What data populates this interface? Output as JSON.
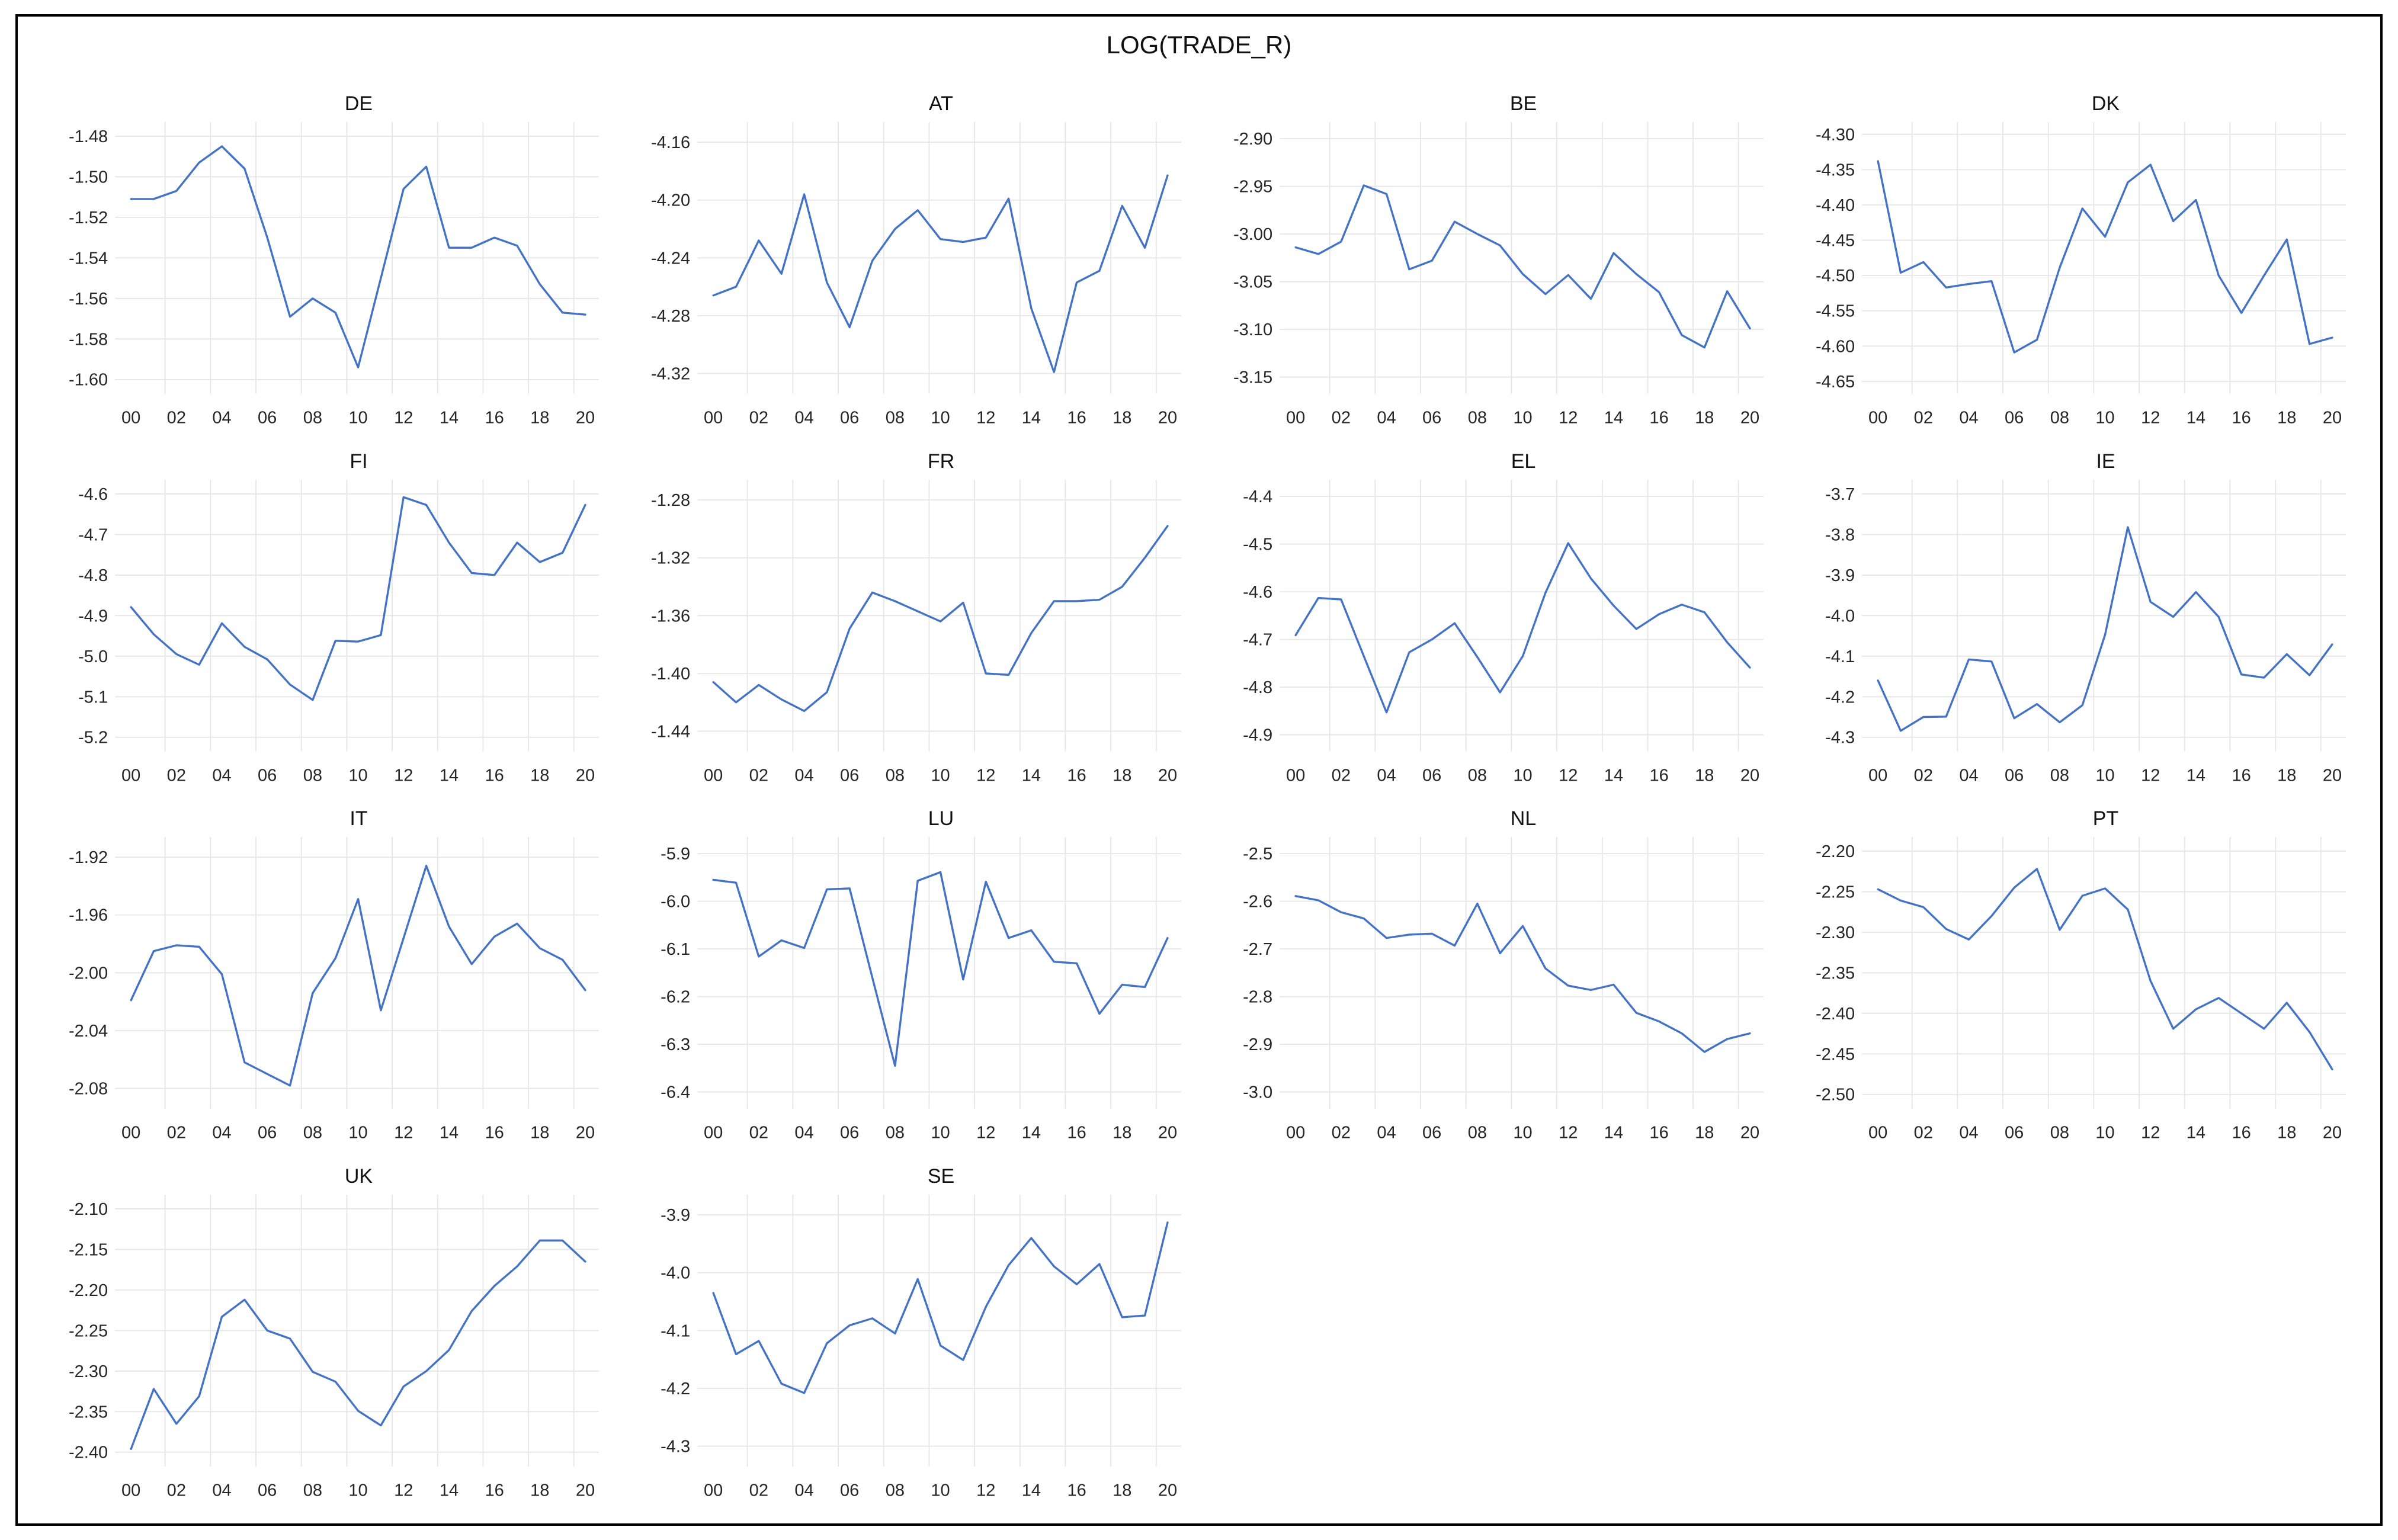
{
  "figure": {
    "title": "LOG(TRADE_R)",
    "line_color": "#4472C4",
    "grid_color": "#e6e6e6",
    "border_color": "#000000",
    "label_color": "#262626",
    "x_tick_labels": [
      "00",
      "02",
      "04",
      "06",
      "08",
      "10",
      "12",
      "14",
      "16",
      "18",
      "20"
    ]
  },
  "chart_data": [
    {
      "type": "line",
      "name": "DE",
      "x_start_year": 2000,
      "tick_decimals": 2,
      "yticks": [
        -1.48,
        -1.5,
        -1.52,
        -1.54,
        -1.56,
        -1.58,
        -1.6
      ],
      "values": [
        -1.511,
        -1.511,
        -1.507,
        -1.493,
        -1.485,
        -1.496,
        -1.53,
        -1.569,
        -1.56,
        -1.567,
        -1.594,
        -1.55,
        -1.506,
        -1.495,
        -1.535,
        -1.535,
        -1.53,
        -1.534,
        -1.553,
        -1.567,
        -1.568
      ]
    },
    {
      "type": "line",
      "name": "AT",
      "x_start_year": 2000,
      "tick_decimals": 2,
      "yticks": [
        -4.16,
        -4.2,
        -4.24,
        -4.28,
        -4.32
      ],
      "values": [
        -4.266,
        -4.26,
        -4.228,
        -4.251,
        -4.196,
        -4.257,
        -4.288,
        -4.242,
        -4.22,
        -4.207,
        -4.227,
        -4.229,
        -4.226,
        -4.199,
        -4.275,
        -4.319,
        -4.257,
        -4.249,
        -4.204,
        -4.233,
        -4.183
      ]
    },
    {
      "type": "line",
      "name": "BE",
      "x_start_year": 2000,
      "tick_decimals": 2,
      "yticks": [
        -2.9,
        -2.95,
        -3.0,
        -3.05,
        -3.1,
        -3.15
      ],
      "values": [
        -3.014,
        -3.021,
        -3.008,
        -2.949,
        -2.958,
        -3.037,
        -3.028,
        -2.987,
        -3.0,
        -3.012,
        -3.042,
        -3.063,
        -3.043,
        -3.068,
        -3.02,
        -3.042,
        -3.061,
        -3.106,
        -3.119,
        -3.06,
        -3.099
      ]
    },
    {
      "type": "line",
      "name": "DK",
      "x_start_year": 2000,
      "tick_decimals": 2,
      "yticks": [
        -4.3,
        -4.35,
        -4.4,
        -4.45,
        -4.5,
        -4.55,
        -4.6,
        -4.65
      ],
      "values": [
        -4.338,
        -4.496,
        -4.481,
        -4.517,
        -4.512,
        -4.508,
        -4.609,
        -4.591,
        -4.489,
        -4.405,
        -4.445,
        -4.368,
        -4.343,
        -4.423,
        -4.393,
        -4.5,
        -4.553,
        -4.5,
        -4.449,
        -4.597,
        -4.588
      ]
    },
    {
      "type": "line",
      "name": "FI",
      "x_start_year": 2000,
      "tick_decimals": 1,
      "yticks": [
        -4.6,
        -4.7,
        -4.8,
        -4.9,
        -5.0,
        -5.1,
        -5.2
      ],
      "values": [
        -4.879,
        -4.946,
        -4.995,
        -5.021,
        -4.919,
        -4.977,
        -5.008,
        -5.07,
        -5.108,
        -4.962,
        -4.964,
        -4.948,
        -4.608,
        -4.627,
        -4.72,
        -4.795,
        -4.8,
        -4.72,
        -4.768,
        -4.745,
        -4.627
      ]
    },
    {
      "type": "line",
      "name": "FR",
      "x_start_year": 2000,
      "tick_decimals": 2,
      "yticks": [
        -1.28,
        -1.32,
        -1.36,
        -1.4,
        -1.44
      ],
      "values": [
        -1.406,
        -1.42,
        -1.408,
        -1.418,
        -1.426,
        -1.413,
        -1.369,
        -1.344,
        -1.35,
        -1.357,
        -1.364,
        -1.351,
        -1.4,
        -1.401,
        -1.372,
        -1.35,
        -1.35,
        -1.349,
        -1.34,
        -1.32,
        -1.298
      ]
    },
    {
      "type": "line",
      "name": "EL",
      "x_start_year": 2000,
      "tick_decimals": 1,
      "yticks": [
        -4.4,
        -4.5,
        -4.6,
        -4.7,
        -4.8,
        -4.9
      ],
      "values": [
        -4.691,
        -4.613,
        -4.616,
        -4.735,
        -4.853,
        -4.727,
        -4.7,
        -4.666,
        -4.737,
        -4.811,
        -4.735,
        -4.602,
        -4.498,
        -4.572,
        -4.629,
        -4.678,
        -4.647,
        -4.627,
        -4.643,
        -4.706,
        -4.759
      ]
    },
    {
      "type": "line",
      "name": "IE",
      "x_start_year": 2000,
      "tick_decimals": 1,
      "yticks": [
        -3.7,
        -3.8,
        -3.9,
        -4.0,
        -4.1,
        -4.2,
        -4.3
      ],
      "values": [
        -4.16,
        -4.284,
        -4.25,
        -4.249,
        -4.108,
        -4.113,
        -4.253,
        -4.218,
        -4.263,
        -4.221,
        -4.047,
        -3.782,
        -3.966,
        -4.003,
        -3.942,
        -4.003,
        -4.145,
        -4.153,
        -4.095,
        -4.147,
        -4.071
      ]
    },
    {
      "type": "line",
      "name": "IT",
      "x_start_year": 2000,
      "tick_decimals": 2,
      "yticks": [
        -1.92,
        -1.96,
        -2.0,
        -2.04,
        -2.08
      ],
      "values": [
        -2.019,
        -1.985,
        -1.981,
        -1.982,
        -2.001,
        -2.062,
        -2.07,
        -2.078,
        -2.014,
        -1.99,
        -1.949,
        -2.026,
        -1.976,
        -1.926,
        -1.968,
        -1.994,
        -1.975,
        -1.966,
        -1.983,
        -1.991,
        -2.012
      ]
    },
    {
      "type": "line",
      "name": "LU",
      "x_start_year": 2000,
      "tick_decimals": 1,
      "yticks": [
        -5.9,
        -6.0,
        -6.1,
        -6.2,
        -6.3,
        -6.4
      ],
      "values": [
        -5.955,
        -5.961,
        -6.116,
        -6.082,
        -6.098,
        -5.975,
        -5.973,
        -6.16,
        -6.345,
        -5.957,
        -5.939,
        -6.164,
        -5.959,
        -6.077,
        -6.061,
        -6.127,
        -6.13,
        -6.236,
        -6.175,
        -6.18,
        -6.077
      ]
    },
    {
      "type": "line",
      "name": "NL",
      "x_start_year": 2000,
      "tick_decimals": 1,
      "yticks": [
        -2.5,
        -2.6,
        -2.7,
        -2.8,
        -2.9,
        -3.0
      ],
      "values": [
        -2.589,
        -2.598,
        -2.623,
        -2.636,
        -2.677,
        -2.67,
        -2.668,
        -2.693,
        -2.605,
        -2.709,
        -2.652,
        -2.741,
        -2.777,
        -2.786,
        -2.775,
        -2.834,
        -2.852,
        -2.877,
        -2.916,
        -2.889,
        -2.877
      ]
    },
    {
      "type": "line",
      "name": "PT",
      "x_start_year": 2000,
      "tick_decimals": 2,
      "yticks": [
        -2.2,
        -2.25,
        -2.3,
        -2.35,
        -2.4,
        -2.45,
        -2.5
      ],
      "values": [
        -2.247,
        -2.261,
        -2.269,
        -2.296,
        -2.309,
        -2.28,
        -2.245,
        -2.222,
        -2.297,
        -2.255,
        -2.246,
        -2.272,
        -2.36,
        -2.419,
        -2.395,
        -2.381,
        -2.4,
        -2.419,
        -2.387,
        -2.423,
        -2.469
      ]
    },
    {
      "type": "line",
      "name": "UK",
      "x_start_year": 2000,
      "tick_decimals": 2,
      "yticks": [
        -2.1,
        -2.15,
        -2.2,
        -2.25,
        -2.3,
        -2.35,
        -2.4
      ],
      "values": [
        -2.396,
        -2.322,
        -2.365,
        -2.331,
        -2.233,
        -2.212,
        -2.25,
        -2.26,
        -2.301,
        -2.313,
        -2.349,
        -2.367,
        -2.319,
        -2.3,
        -2.274,
        -2.226,
        -2.195,
        -2.171,
        -2.139,
        -2.139,
        -2.165
      ]
    },
    {
      "type": "line",
      "name": "SE",
      "x_start_year": 2000,
      "tick_decimals": 1,
      "yticks": [
        -3.9,
        -4.0,
        -4.1,
        -4.2,
        -4.3
      ],
      "values": [
        -4.035,
        -4.141,
        -4.118,
        -4.192,
        -4.208,
        -4.122,
        -4.091,
        -4.079,
        -4.105,
        -4.011,
        -4.126,
        -4.151,
        -4.059,
        -3.987,
        -3.94,
        -3.989,
        -4.02,
        -3.985,
        -4.077,
        -4.074,
        -3.913
      ]
    }
  ]
}
